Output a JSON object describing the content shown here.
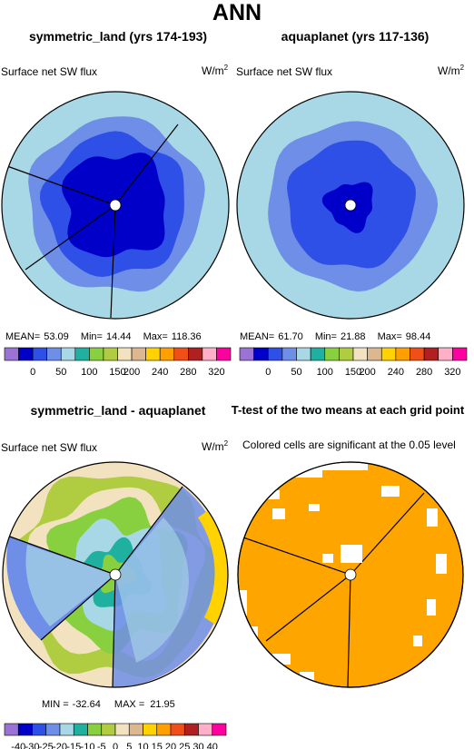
{
  "main_title": "ANN",
  "panels": {
    "tl": {
      "title": "symmetric_land (yrs 174-193)",
      "var": "Surface net SW flux",
      "unit": "W/m",
      "unit_sup": "2",
      "stats": {
        "mean_label": "MEAN=",
        "mean": "53.09",
        "min_label": "Min=",
        "min": "14.44",
        "max_label": "Max=",
        "max": "118.36"
      }
    },
    "tr": {
      "title": "aquaplanet (yrs 117-136)",
      "var": "Surface net SW flux",
      "unit": "W/m",
      "unit_sup": "2",
      "stats": {
        "mean_label": "MEAN=",
        "mean": "61.70",
        "min_label": "Min=",
        "min": "21.88",
        "max_label": "Max=",
        "max": "98.44"
      }
    },
    "bl": {
      "title": "symmetric_land - aquaplanet",
      "var": "Surface net SW flux",
      "unit": "W/m",
      "unit_sup": "2",
      "stats": {
        "min_label": "MIN =",
        "min": "-32.64",
        "max_label": "MAX =",
        "max": "21.95"
      }
    },
    "br": {
      "title": "T-test of the two means at each grid point",
      "note": "Colored cells are significant at the 0.05 level"
    }
  },
  "colorbar_top": {
    "colors": [
      "#9b72d6",
      "#0000c8",
      "#2e50e6",
      "#6e8ee8",
      "#a8d8e6",
      "#20b0a0",
      "#88d040",
      "#b0cc40",
      "#f2e2c0",
      "#dcb890",
      "#ffd200",
      "#ffa000",
      "#f05018",
      "#b02020",
      "#ffb0c8",
      "#ff00a0"
    ],
    "ticks": [
      "0",
      "50",
      "100",
      "150",
      "200",
      "240",
      "280",
      "320"
    ]
  },
  "colorbar_diff": {
    "colors": [
      "#9b72d6",
      "#0000c8",
      "#2e50e6",
      "#6e8ee8",
      "#a8d8e6",
      "#20b0a0",
      "#88d040",
      "#b0cc40",
      "#f2e2c0",
      "#dcb890",
      "#ffd200",
      "#ffa000",
      "#f05018",
      "#b02020",
      "#ffb0c8",
      "#ff00a0"
    ],
    "ticks": [
      "-40",
      "-30",
      "-25",
      "-20",
      "-15",
      "-10",
      "-5",
      "0",
      "5",
      "10",
      "15",
      "20",
      "25",
      "30",
      "40"
    ]
  },
  "chart_data": [
    {
      "type": "heatmap",
      "title": "symmetric_land (yrs 174-193)",
      "subtitle": "Surface net SW flux",
      "units": "W/m2",
      "mean": 53.09,
      "min": 14.44,
      "max": 118.36,
      "levels": [
        0,
        50,
        100,
        150,
        200,
        240,
        280,
        320
      ]
    },
    {
      "type": "heatmap",
      "title": "aquaplanet (yrs 117-136)",
      "subtitle": "Surface net SW flux",
      "units": "W/m2",
      "mean": 61.7,
      "min": 21.88,
      "max": 98.44,
      "levels": [
        0,
        50,
        100,
        150,
        200,
        240,
        280,
        320
      ]
    },
    {
      "type": "heatmap",
      "title": "symmetric_land - aquaplanet",
      "subtitle": "Surface net SW flux",
      "units": "W/m2",
      "min": -32.64,
      "max": 21.95,
      "levels": [
        -40,
        -30,
        -25,
        -20,
        -15,
        -10,
        -5,
        0,
        5,
        10,
        15,
        20,
        25,
        30,
        40
      ]
    },
    {
      "type": "heatmap",
      "title": "T-test of the two means at each grid point",
      "subtitle": "Colored cells are significant at the 0.05 level"
    }
  ]
}
